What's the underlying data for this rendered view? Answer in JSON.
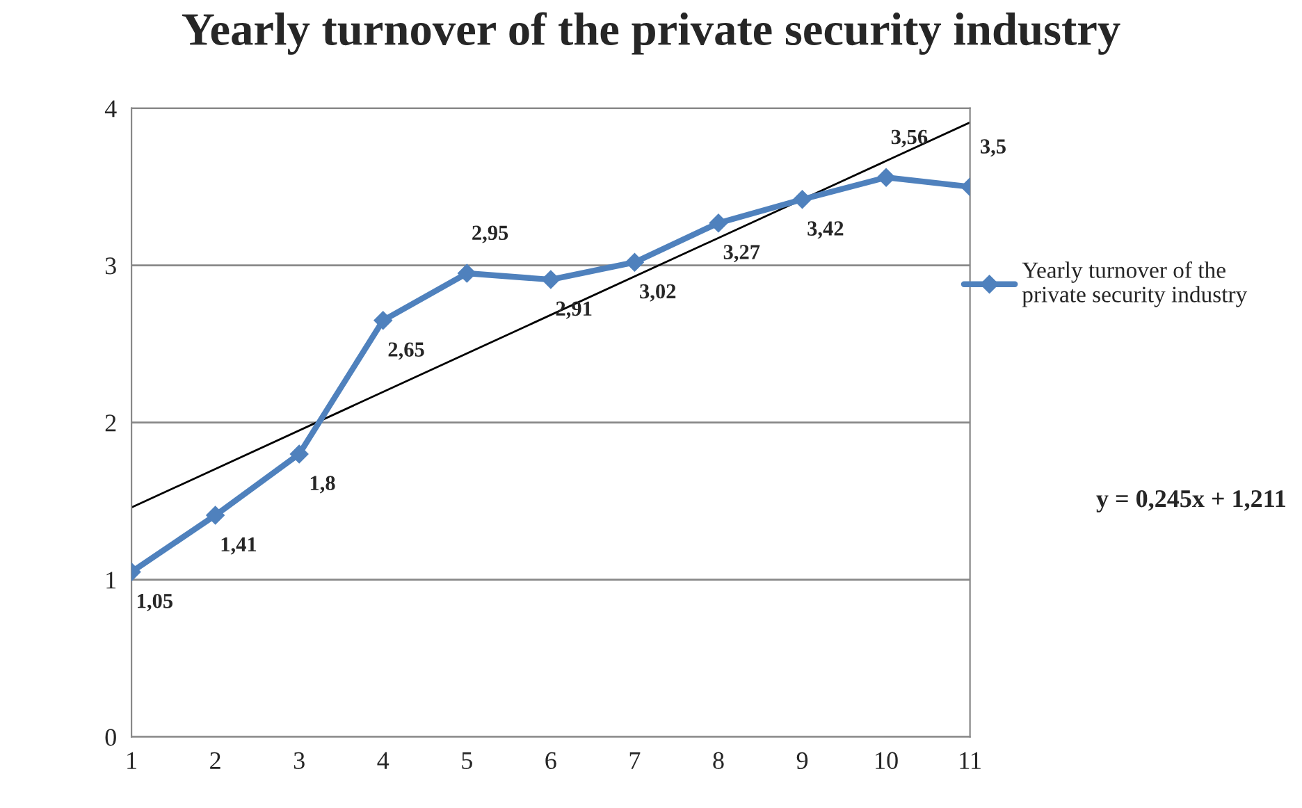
{
  "chart_data": {
    "type": "line",
    "title": "Yearly turnover of the private security industry",
    "x": [
      1,
      2,
      3,
      4,
      5,
      6,
      7,
      8,
      9,
      10,
      11
    ],
    "series": [
      {
        "name": "Yearly turnover of the\nprivate security industry",
        "color": "#4f81bd",
        "marker": "diamond",
        "values": [
          1.05,
          1.41,
          1.8,
          2.65,
          2.95,
          2.91,
          3.02,
          3.27,
          3.42,
          3.56,
          3.5
        ],
        "value_labels": [
          "1,05",
          "1,41",
          "1,8",
          "2,65",
          "2,95",
          "2,91",
          "3,02",
          "3,27",
          "3,42",
          "3,56",
          "3,5"
        ]
      },
      {
        "type": "line",
        "color": "#000000",
        "marker": "none",
        "x": [
          1,
          11
        ],
        "values": [
          1.46,
          3.91
        ]
      }
    ],
    "xlim": [
      1,
      11
    ],
    "xticks": [
      1,
      2,
      3,
      4,
      5,
      6,
      7,
      8,
      9,
      10,
      11
    ],
    "ylim": [
      0,
      4
    ],
    "yticks": [
      0,
      1,
      2,
      3,
      4
    ],
    "grid": "y",
    "legend": "right",
    "annotations": [
      "y = 0,245x + 1,211"
    ]
  }
}
